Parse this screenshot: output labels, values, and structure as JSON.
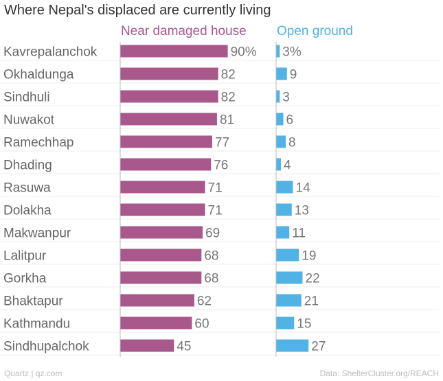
{
  "title": "Where Nepal's displaced are currently living",
  "footer": {
    "credit": "Quartz | qz.com",
    "source": "Data: ShelterCluster.org/REACH"
  },
  "colors": {
    "series1": "#a8588a",
    "series2": "#51b2e5",
    "label_text": "#666666",
    "value_text": "#777777",
    "gridline": "#eeeeee",
    "axis": "#bbbbbb"
  },
  "chart_data": {
    "type": "bar",
    "orientation": "horizontal",
    "title": "Where Nepal's displaced are currently living",
    "categories": [
      "Kavrepalanchok",
      "Okhaldunga",
      "Sindhuli",
      "Nuwakot",
      "Ramechhap",
      "Dhading",
      "Rasuwa",
      "Dolakha",
      "Makwanpur",
      "Lalitpur",
      "Gorkha",
      "Bhaktapur",
      "Kathmandu",
      "Sindhupalchok"
    ],
    "series": [
      {
        "name": "Near damaged house",
        "values": [
          90,
          82,
          82,
          81,
          77,
          76,
          71,
          71,
          69,
          68,
          68,
          62,
          60,
          45
        ],
        "labels": [
          "90%",
          "82",
          "82",
          "81",
          "77",
          "76",
          "71",
          "71",
          "69",
          "68",
          "68",
          "62",
          "60",
          "45"
        ]
      },
      {
        "name": "Open ground",
        "values": [
          3,
          9,
          3,
          6,
          8,
          4,
          14,
          13,
          11,
          19,
          22,
          21,
          15,
          27
        ],
        "labels": [
          "3%",
          "9",
          "3",
          "6",
          "8",
          "4",
          "14",
          "13",
          "11",
          "19",
          "22",
          "21",
          "15",
          "27"
        ]
      }
    ],
    "xlim": [
      0,
      100
    ],
    "grid": true,
    "legend": "top"
  }
}
